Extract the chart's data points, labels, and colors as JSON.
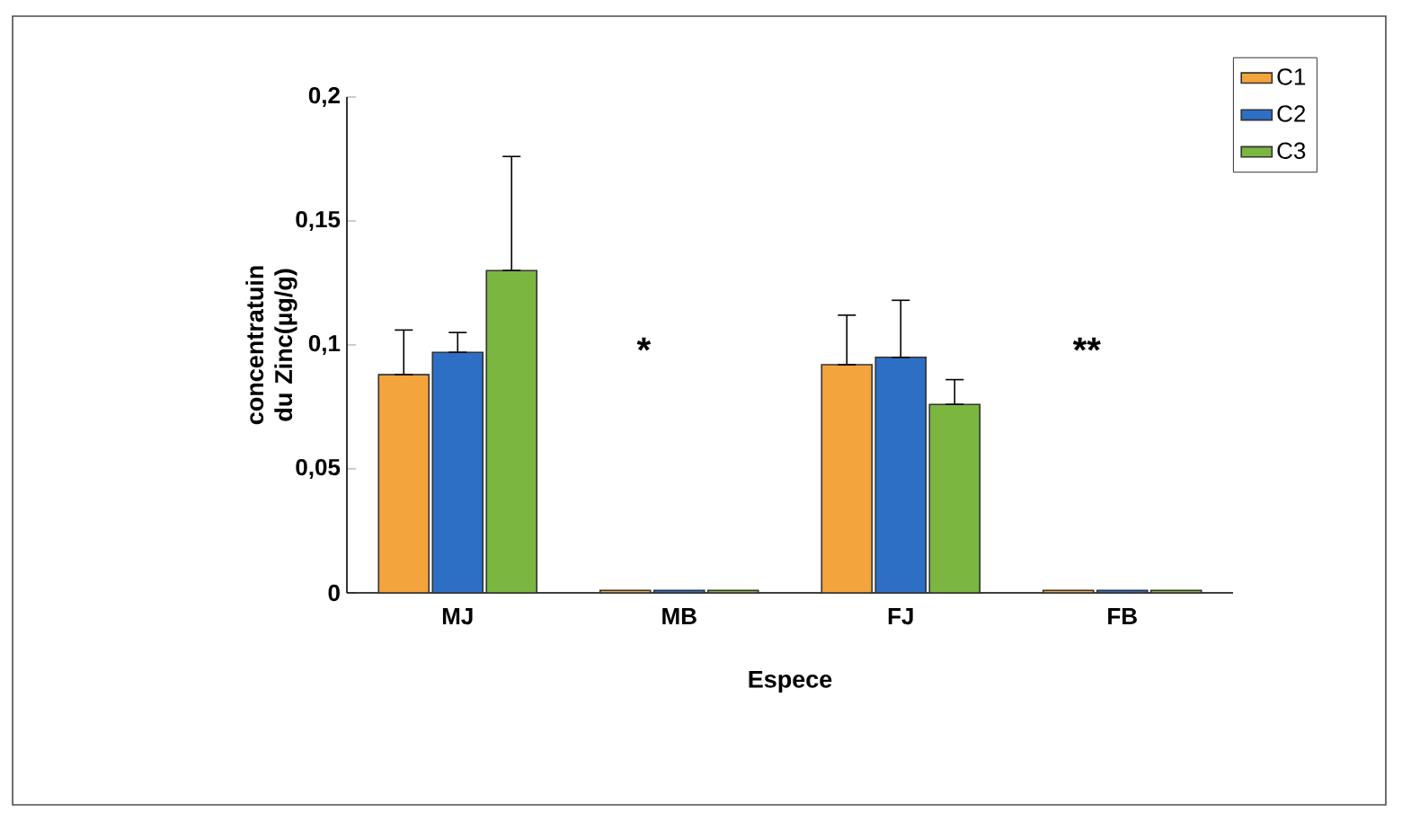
{
  "chart_data": {
    "type": "bar",
    "xlabel": "Espece",
    "ylabel": "concentratuin du Zinc(µg/g)",
    "categories": [
      "MJ",
      "MB",
      "FJ",
      "FB"
    ],
    "series": [
      {
        "name": "C1",
        "color": "#f4a43c",
        "values": [
          0.088,
          0.001,
          0.092,
          0.001
        ],
        "errors": [
          [
            0.088,
            0.106
          ],
          null,
          [
            0.092,
            0.112
          ],
          null
        ]
      },
      {
        "name": "C2",
        "color": "#2e6fc6",
        "values": [
          0.097,
          0.001,
          0.095,
          0.001
        ],
        "errors": [
          [
            0.097,
            0.105
          ],
          null,
          [
            0.095,
            0.118
          ],
          null
        ]
      },
      {
        "name": "C3",
        "color": "#7ab640",
        "values": [
          0.13,
          0.001,
          0.076,
          0.001
        ],
        "errors": [
          [
            0.13,
            0.176
          ],
          null,
          [
            0.076,
            0.086
          ],
          null
        ]
      }
    ],
    "ylim": [
      0,
      0.2
    ],
    "yticks": [
      {
        "value": 0,
        "label": "0"
      },
      {
        "value": 0.05,
        "label": "0,05"
      },
      {
        "value": 0.1,
        "label": "0,1"
      },
      {
        "value": 0.15,
        "label": "0,15"
      },
      {
        "value": 0.2,
        "label": "0,2"
      }
    ],
    "legend": "top right",
    "annotations": [
      "*",
      "**"
    ]
  }
}
